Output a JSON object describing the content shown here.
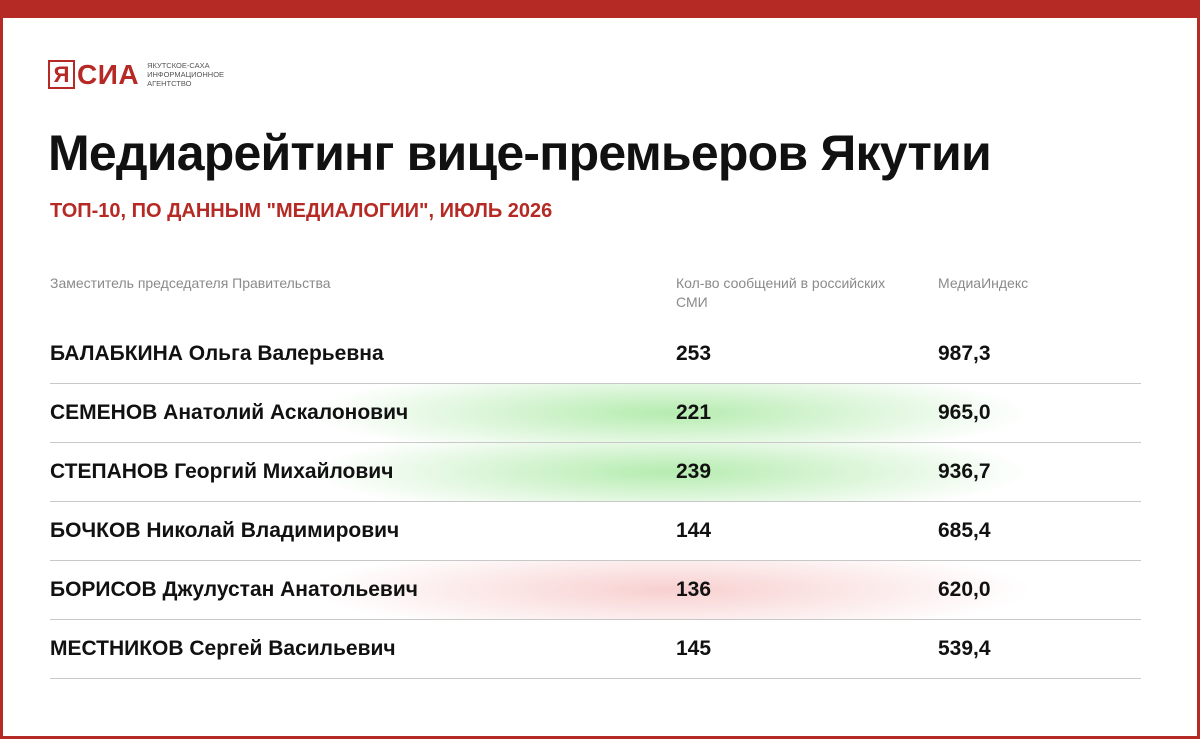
{
  "brand": {
    "logo_letter": "Я",
    "logo_word": "СИА",
    "logo_sub": [
      "ЯКУТСКОЕ-САХА",
      "ИНФОРМАЦИОННОЕ",
      "АГЕНТСТВО"
    ],
    "accent_color": "#b52a25"
  },
  "title": "Медиарейтинг вице-премьеров Якутии",
  "subtitle": "ТОП-10, ПО ДАННЫМ \"МЕДИАЛОГИИ\", ИЮЛЬ 2026",
  "table": {
    "headers": {
      "name": "Заместитель председателя Правительства",
      "count": "Кол-во сообщений в российских СМИ",
      "index": "МедиаИндекс"
    },
    "rows": [
      {
        "name": "БАЛАБКИНА Ольга Валерьевна",
        "count": "253",
        "index": "987,3",
        "highlight": "none"
      },
      {
        "name": "СЕМЕНОВ Анатолий Аскалонович",
        "count": "221",
        "index": "965,0",
        "highlight": "green"
      },
      {
        "name": "СТЕПАНОВ Георгий Михайлович",
        "count": "239",
        "index": "936,7",
        "highlight": "green"
      },
      {
        "name": "БОЧКОВ Николай Владимирович",
        "count": "144",
        "index": "685,4",
        "highlight": "none"
      },
      {
        "name": "БОРИСОВ Джулустан Анатольевич",
        "count": "136",
        "index": "620,0",
        "highlight": "red"
      },
      {
        "name": "МЕСТНИКОВ Сергей Васильевич",
        "count": "145",
        "index": "539,4",
        "highlight": "none"
      }
    ]
  }
}
